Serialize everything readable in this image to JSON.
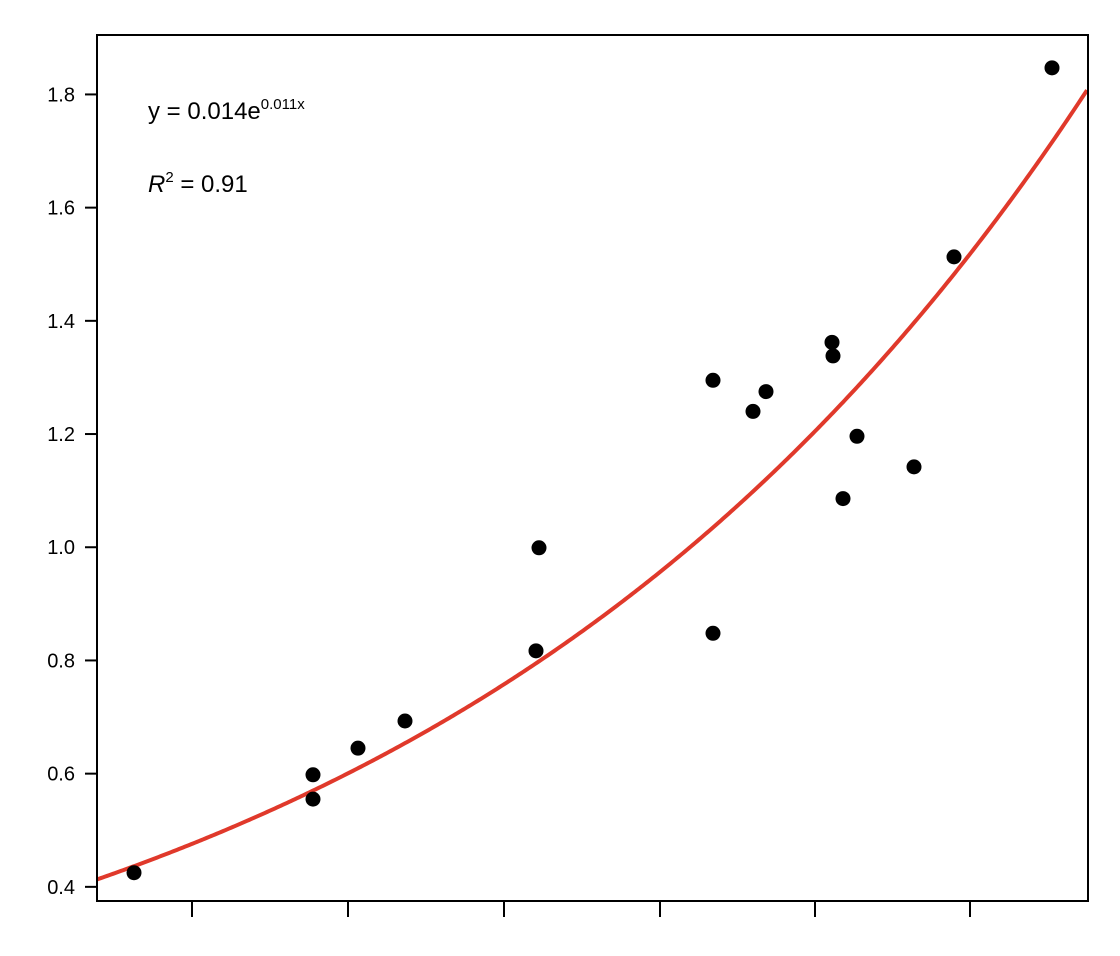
{
  "chart_data": {
    "type": "scatter",
    "title": "",
    "xlabel": "",
    "ylabel": "",
    "x_ticks": [],
    "y_ticks": [
      "0.4",
      "0.6",
      "0.8",
      "1.0",
      "1.2",
      "1.4",
      "1.6",
      "1.8"
    ],
    "ylim": [
      0.375,
      1.905
    ],
    "grid": false,
    "annotations": {
      "equation": {
        "prefix": "y = 0.014e",
        "exponent": "0.011x"
      },
      "r_squared": {
        "symbol": "R",
        "power": "2",
        "value": " = 0.91"
      }
    },
    "fit": {
      "type": "exponential",
      "a": 0.4365,
      "k": 0.001491,
      "color": "#e0392b"
    },
    "point_color": "#000000",
    "points": [
      {
        "x": 0.0,
        "y": 0.425
      },
      {
        "x": 179.0,
        "y": 0.555
      },
      {
        "x": 179.0,
        "y": 0.598
      },
      {
        "x": 224.0,
        "y": 0.645
      },
      {
        "x": 271.0,
        "y": 0.693
      },
      {
        "x": 402.0,
        "y": 0.817
      },
      {
        "x": 405.0,
        "y": 0.999
      },
      {
        "x": 579.0,
        "y": 0.848
      },
      {
        "x": 579.0,
        "y": 1.295
      },
      {
        "x": 619.0,
        "y": 1.24
      },
      {
        "x": 632.0,
        "y": 1.275
      },
      {
        "x": 698.0,
        "y": 1.362
      },
      {
        "x": 699.0,
        "y": 1.338
      },
      {
        "x": 709.0,
        "y": 1.086
      },
      {
        "x": 723.0,
        "y": 1.196
      },
      {
        "x": 780.0,
        "y": 1.142
      },
      {
        "x": 820.0,
        "y": 1.513
      },
      {
        "x": 918.0,
        "y": 1.847
      }
    ]
  }
}
